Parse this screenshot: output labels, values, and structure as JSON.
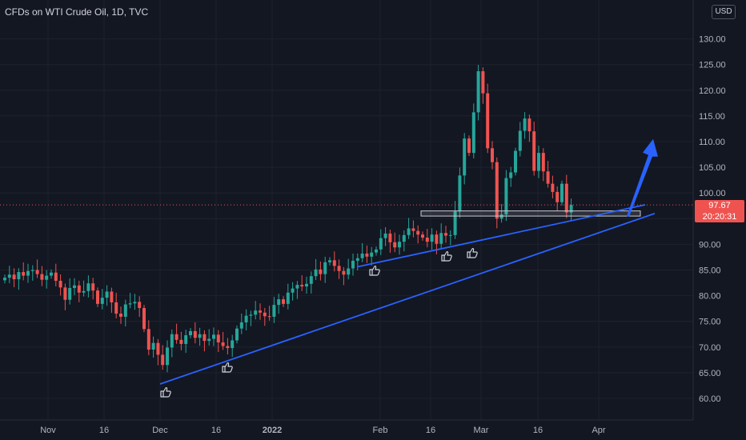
{
  "header": {
    "title": "CFDs on WTI Crude Oil, 1D, TVC"
  },
  "price_scale": {
    "currency": "USD"
  },
  "last_price": {
    "value": "97.67",
    "countdown": "20:20:31"
  },
  "colors": {
    "background": "#131722",
    "up": "#26a69a",
    "down": "#ef5350",
    "trendline": "#2962ff",
    "grid": "#1e222d",
    "box": "#c9cbd3"
  },
  "chart_data": {
    "type": "candlestick",
    "title": "CFDs on WTI Crude Oil, 1D, TVC",
    "y_ticks": [
      "60.00",
      "65.00",
      "70.00",
      "75.00",
      "80.00",
      "85.00",
      "90.00",
      "95.00",
      "100.00",
      "105.00",
      "110.00",
      "115.00",
      "120.00",
      "125.00",
      "130.00"
    ],
    "x_ticks": [
      "Nov",
      "16",
      "Dec",
      "16",
      "2022",
      "Feb",
      "16",
      "Mar",
      "16",
      "Apr"
    ],
    "ylim": [
      58,
      135
    ],
    "last_price": 97.67,
    "annotations": {
      "support_zone": [
        95.5,
        96.5
      ],
      "trendline_long": [
        [
          62.8,
          "Dec"
        ],
        [
          97.5,
          "Apr"
        ]
      ],
      "trendline_short": [
        [
          85.6,
          "Feb"
        ],
        [
          97.5,
          "Apr"
        ]
      ],
      "arrow_target": 110.5,
      "thumbs_up_icons": 5
    },
    "grid": true
  }
}
